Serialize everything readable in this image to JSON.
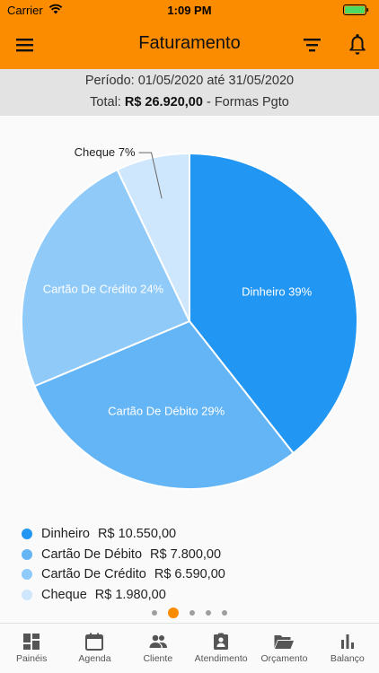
{
  "status_bar": {
    "carrier": "Carrier",
    "time": "1:09 PM"
  },
  "app_bar": {
    "title": "Faturamento"
  },
  "summary": {
    "period": "Período: 01/05/2020 até 31/05/2020",
    "total_label": "Total:",
    "total_value": "R$ 26.920,00",
    "total_suffix": "- Formas Pgto"
  },
  "chart_data": {
    "type": "pie",
    "slices": [
      {
        "name": "Dinheiro",
        "percent": 39,
        "value": "R$ 10.550,00",
        "color": "#2196f3",
        "label_color": "#ffffff"
      },
      {
        "name": "Cartão De Débito",
        "percent": 29,
        "value": "R$ 7.800,00",
        "color": "#64b5f6",
        "label_color": "#ffffff"
      },
      {
        "name": "Cartão De Crédito",
        "percent": 24,
        "value": "R$ 6.590,00",
        "color": "#90caf9",
        "label_color": "#ffffff"
      },
      {
        "name": "Cheque",
        "percent": 7,
        "value": "R$ 1.980,00",
        "color": "#cfe7fc",
        "label_color": "#222222"
      }
    ],
    "legend_position": "bottom"
  },
  "pager": {
    "pages": 5,
    "active": 1
  },
  "bottom_nav": [
    {
      "label": "Painéis",
      "icon": "dashboard-icon"
    },
    {
      "label": "Agenda",
      "icon": "calendar-icon"
    },
    {
      "label": "Cliente",
      "icon": "people-icon"
    },
    {
      "label": "Atendimento",
      "icon": "assignment-icon"
    },
    {
      "label": "Orçamento",
      "icon": "folder-open-icon"
    },
    {
      "label": "Balanço",
      "icon": "bar-chart-icon"
    }
  ],
  "colors": {
    "accent": "#fb8c00",
    "summary_bg": "#e3e3e3"
  }
}
